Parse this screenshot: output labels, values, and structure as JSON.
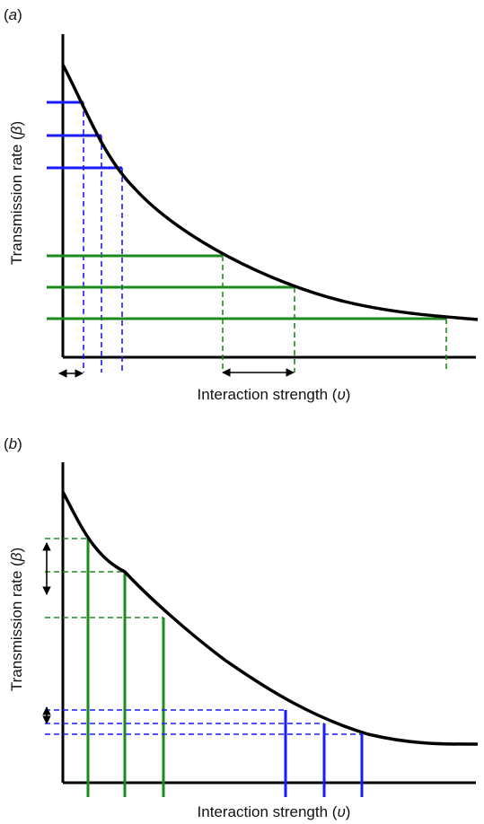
{
  "panels": [
    {
      "label": "(",
      "label_letter": "a",
      "label_close": ")",
      "ylabel": "Transmission rate (",
      "ylabel_symbol": "β",
      "ylabel_close": ")",
      "xlabel": "Interaction strength (",
      "xlabel_symbol": "υ",
      "xlabel_close": ")"
    },
    {
      "label": "(",
      "label_letter": "b",
      "label_close": ")",
      "ylabel": "Transmission rate (",
      "ylabel_symbol": "β",
      "ylabel_close": ")",
      "xlabel": "Interaction strength (",
      "xlabel_symbol": "υ",
      "xlabel_close": ")"
    }
  ],
  "colors": {
    "curve": "#000000",
    "blue": "#1a1aff",
    "green": "#1e8a1e",
    "arrow": "#000000"
  }
}
